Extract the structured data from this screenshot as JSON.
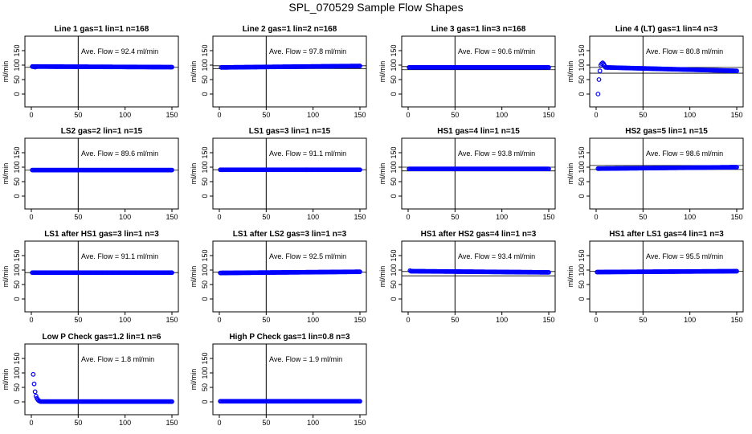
{
  "title": "SPL_070529  Sample Flow Shapes",
  "style": {
    "point_color": "#0000ff",
    "axis_color": "#000000"
  },
  "chart_data": [
    {
      "type": "scatter",
      "title": "Line 1 gas=1 lin=1 n=168",
      "annotation": "Ave. Flow =  92.4  ml/min",
      "ylabel": "ml/min",
      "xlim": [
        0,
        150
      ],
      "ylim": [
        0,
        200
      ],
      "xticks": [
        0,
        50,
        100,
        150
      ],
      "yticks": [
        0,
        50,
        100,
        150
      ],
      "vline_x": 50,
      "hlines": [
        92.4
      ],
      "series": [
        {
          "x_start": 1,
          "x_end": 150,
          "y_start": 95,
          "y_end": 93,
          "first_points": [
            [
              2,
              95
            ],
            [
              3,
              94
            ],
            [
              4,
              93
            ]
          ],
          "marker": "circle"
        }
      ]
    },
    {
      "type": "scatter",
      "title": "Line 2 gas=1 lin=2 n=168",
      "annotation": "Ave. Flow =  97.8  ml/min",
      "ylabel": "ml/min",
      "xlim": [
        0,
        150
      ],
      "ylim": [
        0,
        200
      ],
      "xticks": [
        0,
        50,
        100,
        150
      ],
      "yticks": [
        0,
        50,
        100,
        150
      ],
      "vline_x": 50,
      "hlines": [
        97.8,
        88
      ],
      "series": [
        {
          "x_start": 2,
          "x_end": 150,
          "y_start": 92,
          "y_end": 97,
          "first_points": [],
          "marker": "circle"
        }
      ]
    },
    {
      "type": "scatter",
      "title": "Line 3 gas=1 lin=3 n=168",
      "annotation": "Ave. Flow =  90.6  ml/min",
      "ylabel": "ml/min",
      "xlim": [
        0,
        150
      ],
      "ylim": [
        0,
        200
      ],
      "xticks": [
        0,
        50,
        100,
        150
      ],
      "yticks": [
        0,
        50,
        100,
        150
      ],
      "vline_x": 50,
      "hlines": [
        95,
        84
      ],
      "series": [
        {
          "x_start": 1,
          "x_end": 150,
          "y_start": 92,
          "y_end": 92,
          "first_points": [],
          "marker": "circle"
        }
      ]
    },
    {
      "type": "scatter",
      "title": "Line 4 (LT) gas=1 lin=4 n=3",
      "annotation": "Ave. Flow =  80.8  ml/min",
      "ylabel": "ml/min",
      "xlim": [
        0,
        150
      ],
      "ylim": [
        0,
        200
      ],
      "xticks": [
        0,
        50,
        100,
        150
      ],
      "yticks": [
        0,
        50,
        100,
        150
      ],
      "vline_x": 50,
      "hlines": [
        92,
        72
      ],
      "series": [
        {
          "x_start": 10,
          "x_end": 150,
          "y_start": 92,
          "y_end": 80,
          "first_points": [
            [
              2,
              0
            ],
            [
              3,
              50
            ],
            [
              4,
              80
            ],
            [
              5,
              100
            ],
            [
              6,
              105
            ],
            [
              7,
              108
            ],
            [
              8,
              104
            ],
            [
              9,
              98
            ]
          ],
          "marker": "circle"
        }
      ]
    },
    {
      "type": "scatter",
      "title": "LS2 gas=2 lin=1 n=15",
      "annotation": "Ave. Flow =  89.6  ml/min",
      "ylabel": "ml/min",
      "xlim": [
        0,
        150
      ],
      "ylim": [
        0,
        200
      ],
      "xticks": [
        0,
        50,
        100,
        150
      ],
      "yticks": [
        0,
        50,
        100,
        150
      ],
      "vline_x": 50,
      "hlines": [
        89.6
      ],
      "series": [
        {
          "x_start": 1,
          "x_end": 150,
          "y_start": 90,
          "y_end": 90,
          "first_points": [],
          "marker": "circle"
        }
      ]
    },
    {
      "type": "scatter",
      "title": "LS1 gas=3 lin=1 n=15",
      "annotation": "Ave. Flow =  91.1  ml/min",
      "ylabel": "ml/min",
      "xlim": [
        0,
        150
      ],
      "ylim": [
        0,
        200
      ],
      "xticks": [
        0,
        50,
        100,
        150
      ],
      "yticks": [
        0,
        50,
        100,
        150
      ],
      "vline_x": 50,
      "hlines": [
        91.1
      ],
      "series": [
        {
          "x_start": 1,
          "x_end": 150,
          "y_start": 91,
          "y_end": 91,
          "first_points": [],
          "marker": "circle"
        }
      ]
    },
    {
      "type": "scatter",
      "title": "HS1 gas=4 lin=1 n=15",
      "annotation": "Ave. Flow =  93.8  ml/min",
      "ylabel": "ml/min",
      "xlim": [
        0,
        150
      ],
      "ylim": [
        0,
        200
      ],
      "xticks": [
        0,
        50,
        100,
        150
      ],
      "yticks": [
        0,
        50,
        100,
        150
      ],
      "vline_x": 50,
      "hlines": [
        100,
        87
      ],
      "series": [
        {
          "x_start": 1,
          "x_end": 150,
          "y_start": 94,
          "y_end": 94,
          "first_points": [],
          "marker": "circle"
        }
      ]
    },
    {
      "type": "scatter",
      "title": "HS2 gas=5 lin=1 n=15",
      "annotation": "Ave. Flow =  98.6  ml/min",
      "ylabel": "ml/min",
      "xlim": [
        0,
        150
      ],
      "ylim": [
        0,
        200
      ],
      "xticks": [
        0,
        50,
        100,
        150
      ],
      "yticks": [
        0,
        50,
        100,
        150
      ],
      "vline_x": 50,
      "hlines": [
        106,
        92
      ],
      "series": [
        {
          "x_start": 2,
          "x_end": 150,
          "y_start": 95,
          "y_end": 100,
          "first_points": [],
          "marker": "circle"
        }
      ]
    },
    {
      "type": "scatter",
      "title": "LS1 after HS1 gas=3 lin=1 n=3",
      "annotation": "Ave. Flow =  91.1  ml/min",
      "ylabel": "ml/min",
      "xlim": [
        0,
        150
      ],
      "ylim": [
        0,
        200
      ],
      "xticks": [
        0,
        50,
        100,
        150
      ],
      "yticks": [
        0,
        50,
        100,
        150
      ],
      "vline_x": 50,
      "hlines": [
        91.1
      ],
      "series": [
        {
          "x_start": 1,
          "x_end": 150,
          "y_start": 91,
          "y_end": 91,
          "first_points": [],
          "marker": "circle"
        }
      ]
    },
    {
      "type": "scatter",
      "title": "LS1 after LS2 gas=3 lin=1 n=3",
      "annotation": "Ave. Flow =  92.5  ml/min",
      "ylabel": "ml/min",
      "xlim": [
        0,
        150
      ],
      "ylim": [
        0,
        200
      ],
      "xticks": [
        0,
        50,
        100,
        150
      ],
      "yticks": [
        0,
        50,
        100,
        150
      ],
      "vline_x": 50,
      "hlines": [
        92.5
      ],
      "series": [
        {
          "x_start": 1,
          "x_end": 150,
          "y_start": 90,
          "y_end": 94,
          "first_points": [],
          "marker": "circle"
        }
      ]
    },
    {
      "type": "scatter",
      "title": "HS1 after HS2 gas=4 lin=1 n=3",
      "annotation": "Ave. Flow =  93.4  ml/min",
      "ylabel": "ml/min",
      "xlim": [
        0,
        150
      ],
      "ylim": [
        0,
        200
      ],
      "xticks": [
        0,
        50,
        100,
        150
      ],
      "yticks": [
        0,
        50,
        100,
        150
      ],
      "vline_x": 50,
      "hlines": [
        95,
        80
      ],
      "series": [
        {
          "x_start": 3,
          "x_end": 150,
          "y_start": 96,
          "y_end": 92,
          "first_points": [
            [
              2,
              98
            ]
          ],
          "marker": "circle"
        }
      ]
    },
    {
      "type": "scatter",
      "title": "HS1 after LS1 gas=4 lin=1 n=3",
      "annotation": "Ave. Flow =  95.5  ml/min",
      "ylabel": "ml/min",
      "xlim": [
        0,
        150
      ],
      "ylim": [
        0,
        200
      ],
      "xticks": [
        0,
        50,
        100,
        150
      ],
      "yticks": [
        0,
        50,
        100,
        150
      ],
      "vline_x": 50,
      "hlines": [
        95.5
      ],
      "series": [
        {
          "x_start": 1,
          "x_end": 150,
          "y_start": 93,
          "y_end": 96,
          "first_points": [],
          "marker": "circle"
        }
      ]
    },
    {
      "type": "scatter",
      "title": "Low P Check gas=1.2 lin=1 n=6",
      "annotation": "Ave. Flow =  1.8  ml/min",
      "ylabel": "ml/min",
      "xlim": [
        0,
        150
      ],
      "ylim": [
        0,
        200
      ],
      "xticks": [
        0,
        50,
        100,
        150
      ],
      "yticks": [
        0,
        50,
        100,
        150
      ],
      "vline_x": 50,
      "hlines": [],
      "series": [
        {
          "x_start": 10,
          "x_end": 150,
          "y_start": 1,
          "y_end": 1,
          "first_points": [
            [
              2,
              95
            ],
            [
              3,
              62
            ],
            [
              4,
              35
            ],
            [
              5,
              20
            ],
            [
              6,
              12
            ],
            [
              7,
              7
            ],
            [
              8,
              4
            ],
            [
              9,
              2
            ]
          ],
          "marker": "circle"
        }
      ]
    },
    {
      "type": "scatter",
      "title": "High P Check gas=1 lin=0.8 n=3",
      "annotation": "Ave. Flow =  1.9  ml/min",
      "ylabel": "ml/min",
      "xlim": [
        0,
        150
      ],
      "ylim": [
        0,
        200
      ],
      "xticks": [
        0,
        50,
        100,
        150
      ],
      "yticks": [
        0,
        50,
        100,
        150
      ],
      "vline_x": 50,
      "hlines": [],
      "series": [
        {
          "x_start": 1,
          "x_end": 150,
          "y_start": 2,
          "y_end": 2,
          "first_points": [],
          "marker": "circle"
        }
      ]
    }
  ]
}
